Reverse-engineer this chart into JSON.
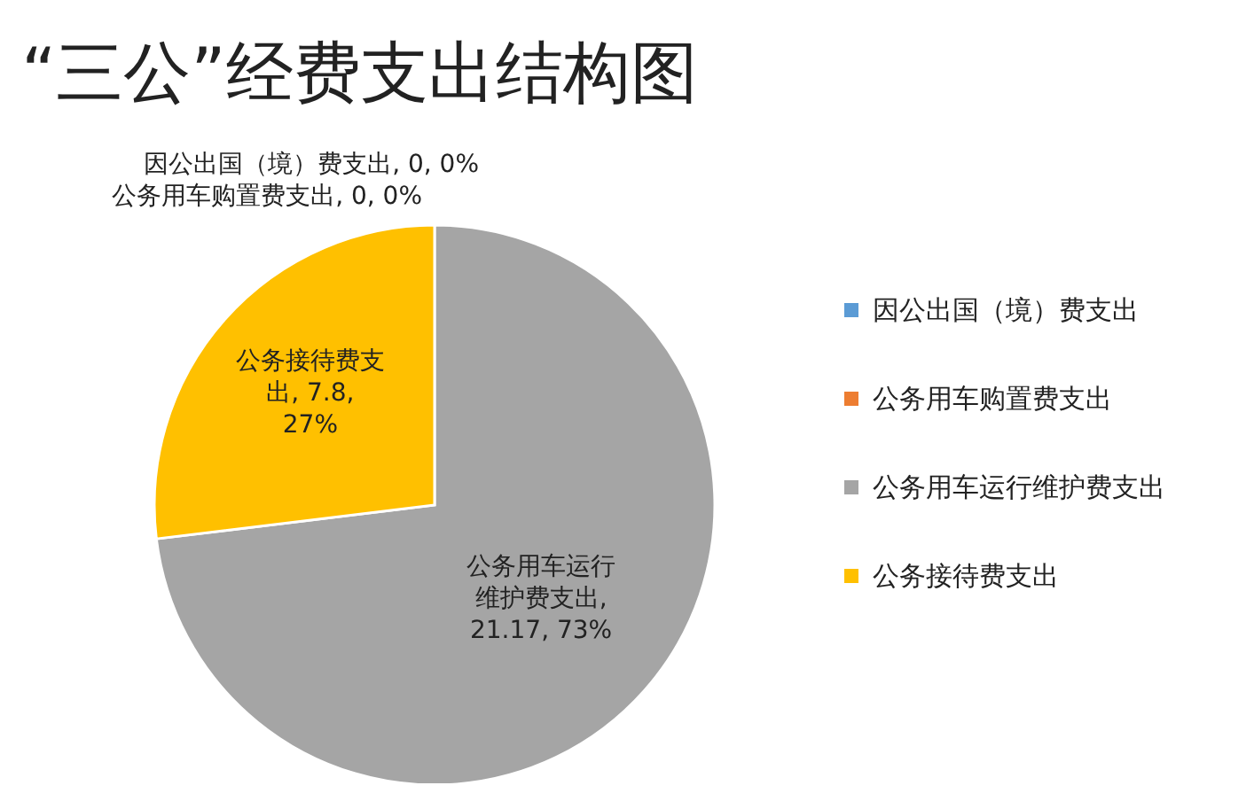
{
  "chart_data": {
    "type": "pie",
    "title": "“三公”经费支出结构图",
    "categories": [
      "因公出国（境）费支出",
      "公务用车购置费支出",
      "公务用车运行维护费支出",
      "公务接待费支出"
    ],
    "values": [
      0,
      0,
      21.17,
      7.8
    ],
    "colors": [
      "#5b9bd5",
      "#ed7d31",
      "#a5a5a5",
      "#ffc000"
    ],
    "value_labels": [
      "因公出国（境）费支出, 0, 0%",
      "公务用车购置费支出, 0, 0%",
      "公务用车运行维护费支出, 21.17, 73%",
      "公务接待费支出, 7.8, 27%"
    ],
    "legend": "right"
  }
}
